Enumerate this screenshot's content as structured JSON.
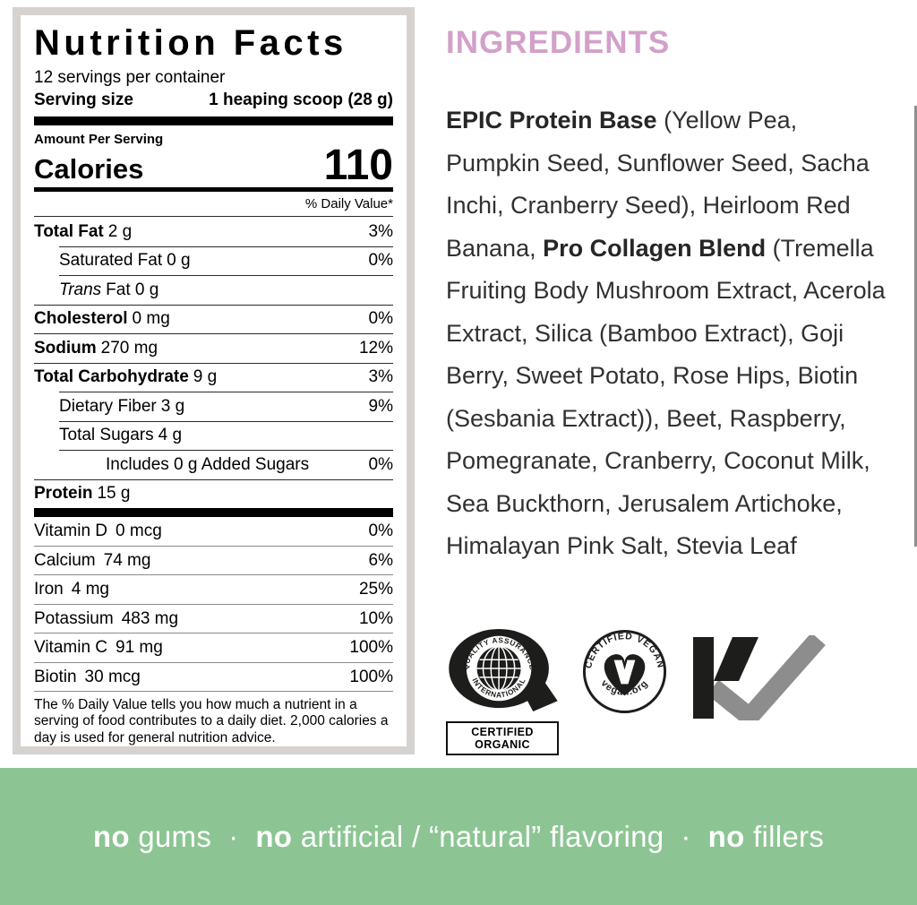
{
  "nutrition_label": {
    "title": "Nutrition Facts",
    "servings_per_container": "12 servings per container",
    "serving_size": {
      "label": "Serving size",
      "value": "1 heaping scoop (28 g)"
    },
    "amount_per_serving": "Amount Per Serving",
    "calories": {
      "label": "Calories",
      "value": "110"
    },
    "daily_value_header": "% Daily Value*",
    "rows": [
      {
        "name": "Total Fat",
        "amount": "2 g",
        "dv": "3%",
        "bold": true,
        "italic": false,
        "indent": 0
      },
      {
        "name": "Saturated Fat",
        "amount": "0 g",
        "dv": "0%",
        "bold": false,
        "italic": false,
        "indent": 1
      },
      {
        "name": "Trans",
        "amount": "Fat 0 g",
        "dv": "",
        "bold": false,
        "italic": true,
        "indent": 1
      },
      {
        "name": "Cholesterol",
        "amount": "0 mg",
        "dv": "0%",
        "bold": true,
        "italic": false,
        "indent": 0
      },
      {
        "name": "Sodium",
        "amount": "270 mg",
        "dv": "12%",
        "bold": true,
        "italic": false,
        "indent": 0
      },
      {
        "name": "Total Carbohydrate",
        "amount": "9 g",
        "dv": "3%",
        "bold": true,
        "italic": false,
        "indent": 0
      },
      {
        "name": "Dietary Fiber",
        "amount": "3 g",
        "dv": "9%",
        "bold": false,
        "italic": false,
        "indent": 1
      },
      {
        "name": "Total Sugars",
        "amount": "4 g",
        "dv": "",
        "bold": false,
        "italic": false,
        "indent": 1
      },
      {
        "name": "Includes 0 g Added Sugars",
        "amount": "",
        "dv": "0%",
        "bold": false,
        "italic": false,
        "indent": 2
      },
      {
        "name": "Protein",
        "amount": "15 g",
        "dv": "",
        "bold": true,
        "italic": false,
        "indent": 0
      }
    ],
    "vitamin_rows": [
      {
        "name": "Vitamin D",
        "amount": "0 mcg",
        "dv": "0%"
      },
      {
        "name": "Calcium",
        "amount": "74 mg",
        "dv": "6%"
      },
      {
        "name": "Iron",
        "amount": "4 mg",
        "dv": "25%"
      },
      {
        "name": "Potassium",
        "amount": "483 mg",
        "dv": "10%"
      },
      {
        "name": "Vitamin C",
        "amount": "91 mg",
        "dv": "100%"
      },
      {
        "name": "Biotin",
        "amount": "30 mcg",
        "dv": "100%"
      }
    ],
    "footnote": "The % Daily Value tells you how much a nutrient in a serving of food contributes to a daily diet. 2,000 calories a day is used for general nutrition advice."
  },
  "ingredients": {
    "heading": "INGREDIENTS",
    "segments": [
      {
        "bold": true,
        "text": "EPIC Protein Base"
      },
      {
        "bold": false,
        "text": " (Yellow Pea, Pumpkin Seed, Sunflower Seed, Sacha Inchi, Cranberry Seed), Heirloom Red Banana, "
      },
      {
        "bold": true,
        "text": "Pro Collagen Blend"
      },
      {
        "bold": false,
        "text": " (Tremella Fruiting Body Mushroom Extract, Acerola Extract, Silica (Bamboo Extract), Goji Berry, Sweet Potato, Rose Hips, Biotin (Sesbania Extract)), Beet, Raspberry, Pomegranate, Cranberry, Coconut Milk, Sea Buckthorn, Jerusalem Artichoke, Himalayan Pink Salt, Stevia Leaf"
      }
    ]
  },
  "certifications": {
    "organic": {
      "arc_top": "QUALITY ASSURANCE",
      "arc_bottom": "INTERNATIONAL",
      "box_label": "CERTIFIED ORGANIC"
    },
    "vegan": {
      "arc_top": "CERTIFIED VEGAN",
      "arc_bottom": "vegan.org"
    },
    "kosher": {
      "letters": "KV"
    }
  },
  "banner": {
    "segments": [
      {
        "bold": true,
        "text": "no"
      },
      {
        "bold": false,
        "text": " gums  ·  "
      },
      {
        "bold": true,
        "text": "no"
      },
      {
        "bold": false,
        "text": " artificial / “natural” flavoring  ·  "
      },
      {
        "bold": true,
        "text": "no"
      },
      {
        "bold": false,
        "text": " fillers"
      }
    ]
  },
  "colors": {
    "ingredients_pink": "#d3a0ca",
    "banner_green": "#8cc593",
    "panel_frame_gray": "#d6d2cf",
    "kosher_v_gray": "#8d8d8d",
    "logo_black": "#1d1d1b"
  }
}
